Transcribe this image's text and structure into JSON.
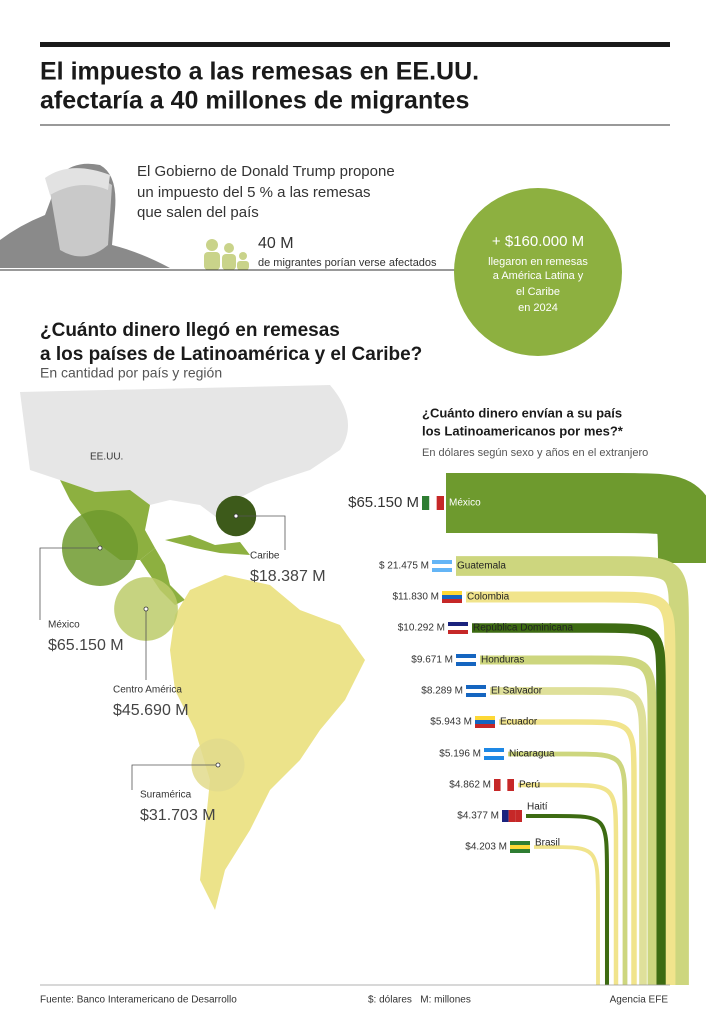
{
  "header": {
    "title_lines": [
      "El impuesto a las remesas en EE.UU.",
      "afectaría a 40 millones de migrantes"
    ]
  },
  "intro": {
    "lines": [
      "El Gobierno de Donald Trump propone",
      "un impuesto del 5 % a las remesas",
      "que salen del país"
    ],
    "migrants": "40 M",
    "migrants_note": "de migrantes porían verse afectados"
  },
  "highlight": {
    "amount": "+ $160.000 M",
    "lines": [
      "llegaron en remesas",
      "a América Latina y",
      "el Caribe",
      "en 2024"
    ]
  },
  "map": {
    "title_lines": [
      "¿Cuánto dinero llegó en remesas",
      "a los países de Latinoamérica y el Caribe?"
    ],
    "subtitle": "En cantidad por país y región",
    "us_label": "EE.UU.",
    "regions": [
      {
        "name": "Caribe",
        "value": 18387,
        "label": "$18.387 M"
      },
      {
        "name": "México",
        "value": 65150,
        "label": "$65.150 M"
      },
      {
        "name": "Centro América",
        "value": 45690,
        "label": "$45.690 M"
      },
      {
        "name": "Suramérica",
        "value": 31703,
        "label": "$31.703 M"
      }
    ]
  },
  "flows": {
    "title_lines": [
      "¿Cuánto dinero envían a su país",
      "los Latinoamericanos por mes?*"
    ],
    "subtitle": "En dólares según sexo y años en el extranjero",
    "countries": [
      {
        "name": "México",
        "value": 65150,
        "label": "$65.150 M"
      },
      {
        "name": "Guatemala",
        "value": 21475,
        "label": "$ 21.475 M"
      },
      {
        "name": "Colombia",
        "value": 11830,
        "label": "$11.830 M"
      },
      {
        "name": "República Dominicana",
        "value": 10292,
        "label": "$10.292 M"
      },
      {
        "name": "Honduras",
        "value": 9671,
        "label": "$9.671 M"
      },
      {
        "name": "El Salvador",
        "value": 8289,
        "label": "$8.289 M"
      },
      {
        "name": "Ecuador",
        "value": 5943,
        "label": "$5.943 M"
      },
      {
        "name": "Nicaragua",
        "value": 5196,
        "label": "$5.196 M"
      },
      {
        "name": "Perú",
        "value": 4862,
        "label": "$4.862 M"
      },
      {
        "name": "Haití",
        "value": 4377,
        "label": "$4.377 M"
      },
      {
        "name": "Brasil",
        "value": 4203,
        "label": "$4.203 M"
      }
    ]
  },
  "footer": {
    "source": "Fuente: Banco Interamericano de Desarrollo",
    "units": "$: dólares   M: millones",
    "agency": "Agencia EFE"
  }
}
